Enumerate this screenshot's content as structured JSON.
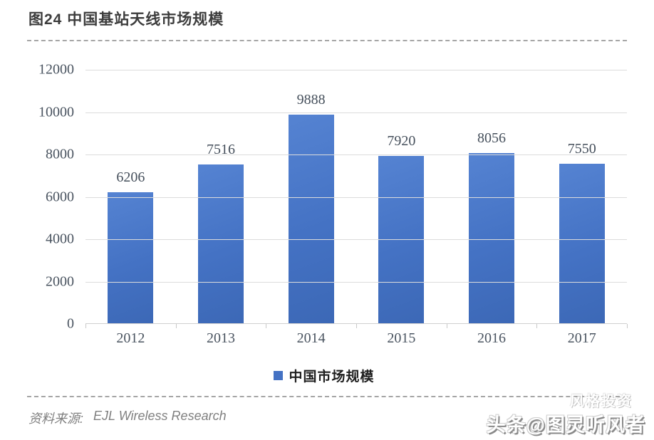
{
  "header": {
    "title": "图24 中国基站天线市场规模"
  },
  "chart_data": {
    "type": "bar",
    "title": "图24 中国基站天线市场规模",
    "categories": [
      "2012",
      "2013",
      "2014",
      "2015",
      "2016",
      "2017"
    ],
    "values": [
      6206,
      7516,
      9888,
      7920,
      8056,
      7550
    ],
    "series": [
      {
        "name": "中国市场规模",
        "values": [
          6206,
          7516,
          9888,
          7920,
          8056,
          7550
        ]
      }
    ],
    "xlabel": "",
    "ylabel": "",
    "ylim": [
      0,
      12000
    ],
    "yticks": [
      0,
      2000,
      4000,
      6000,
      8000,
      10000,
      12000
    ],
    "grid": true,
    "data_labels": true,
    "legend_position": "bottom",
    "bar_color": "#4472C4",
    "gridline_color": "#DCDCDC",
    "tick_label_color": "#4A5460"
  },
  "legend": {
    "label": "中国市场规模",
    "marker_color": "#4472C4"
  },
  "footer": {
    "source_label": "资料来源:",
    "source_text": "EJL Wireless Research"
  },
  "watermarks": {
    "bottom_right_faint": "风格投资",
    "bottom_right_primary": "头条@图灵听风者"
  }
}
